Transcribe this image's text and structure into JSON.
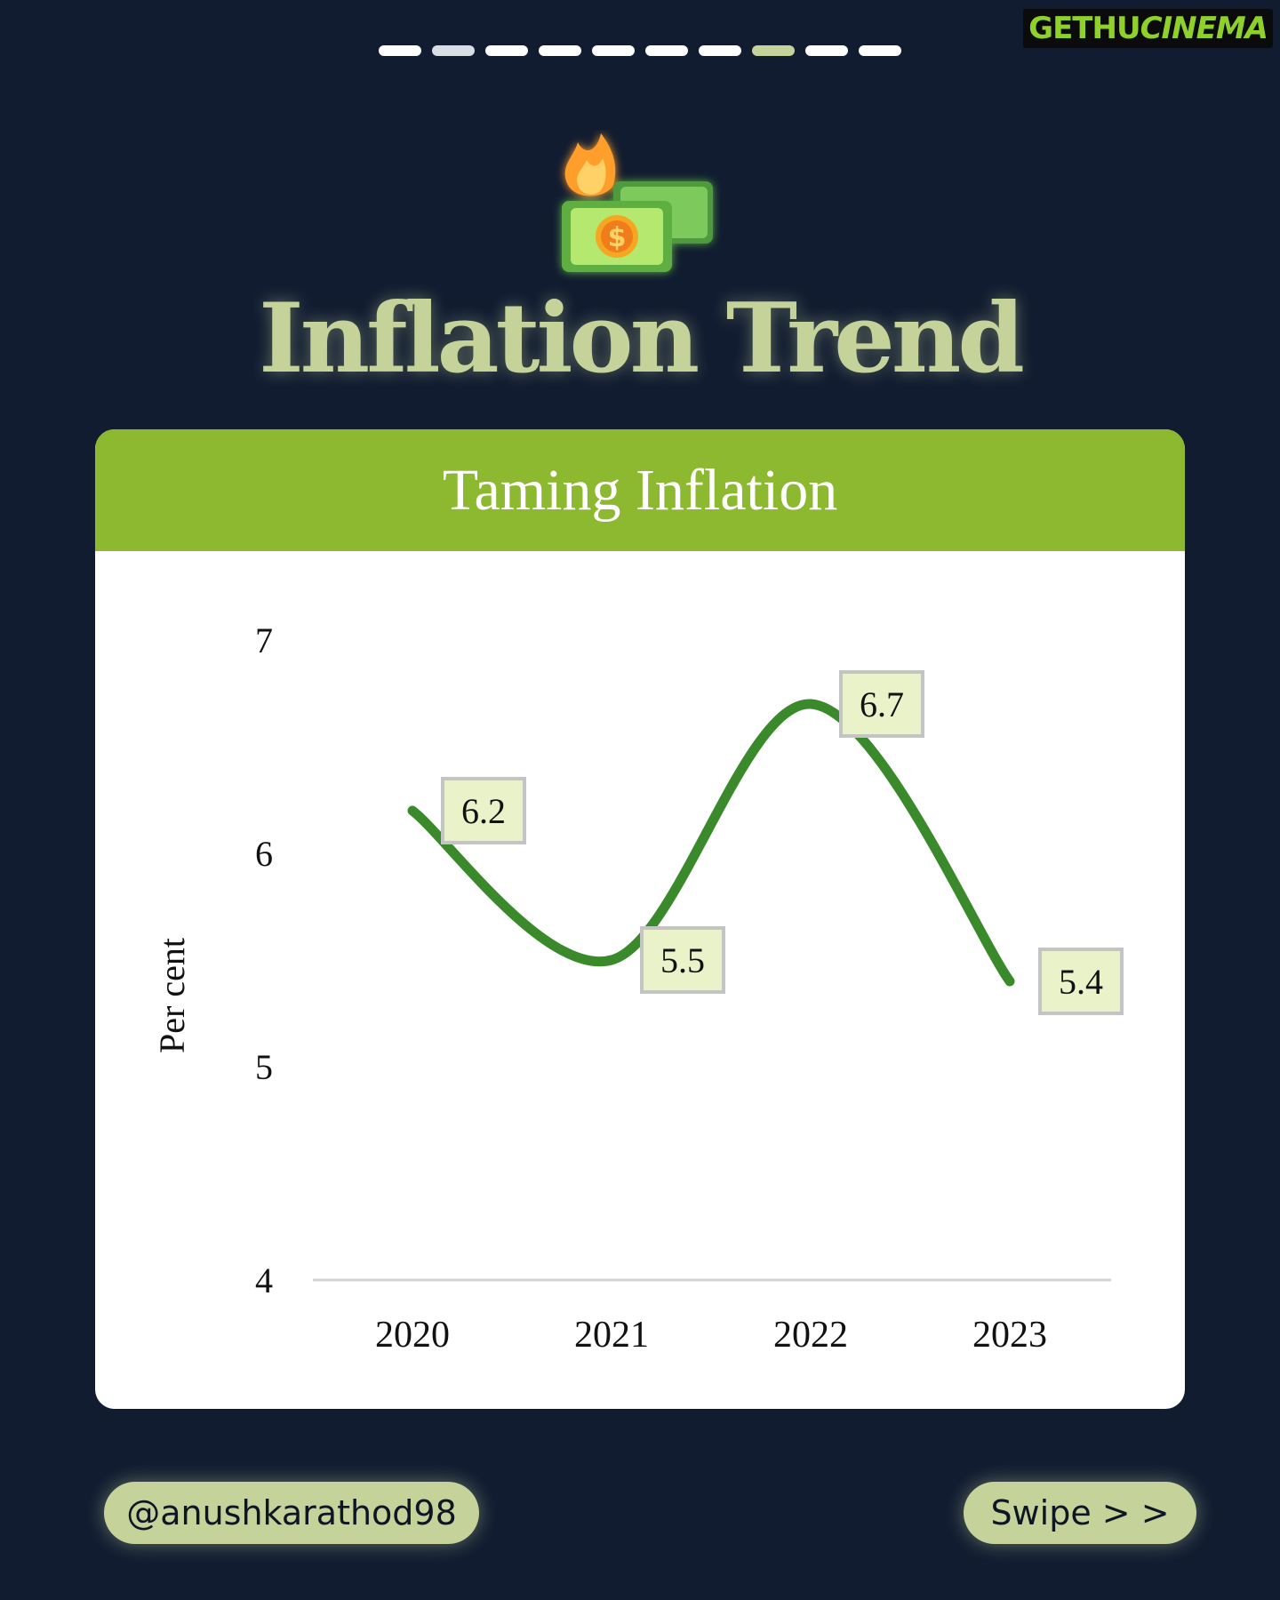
{
  "progress": {
    "count": 10,
    "active_index": 7,
    "dim_index": 1
  },
  "watermark": {
    "part1": "GETHU",
    "part2": "CINEMA"
  },
  "hero_icon": "money-fire-icon",
  "title": "Inflation Trend",
  "chart_data": {
    "type": "line",
    "title": "Taming Inflation",
    "xlabel": "",
    "ylabel": "Per cent",
    "categories": [
      "2020",
      "2021",
      "2022",
      "2023"
    ],
    "values": [
      6.2,
      5.5,
      6.7,
      5.4
    ],
    "data_labels": [
      "6.2",
      "5.5",
      "6.7",
      "5.4"
    ],
    "ylim": [
      4,
      7
    ],
    "yticks": [
      4,
      5,
      6,
      7
    ],
    "ytick_labels": [
      "4",
      "5",
      "6",
      "7"
    ],
    "smooth": true,
    "grid": false,
    "line_color": "#3a8a2c",
    "label_bg": "#eaf2c9"
  },
  "footer": {
    "handle": "@anushkarathod98",
    "swipe": "Swipe > >"
  },
  "colors": {
    "background": "#111c31",
    "accent": "#c5d39a",
    "header_green": "#8db931"
  }
}
